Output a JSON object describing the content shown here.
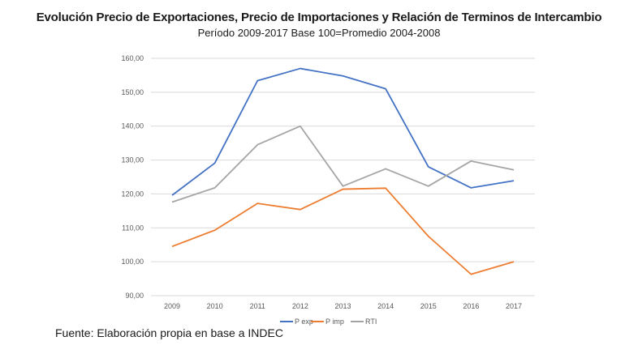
{
  "chart_data": {
    "type": "line",
    "title": "Evolución Precio de Exportaciones, Precio de Importaciones y Relación de Terminos de Intercambio",
    "subtitle": "Período 2009-2017 Base 100=Promedio 2004-2008",
    "xlabel": "",
    "ylabel": "",
    "x": [
      "2009",
      "2010",
      "2011",
      "2012",
      "2013",
      "2014",
      "2015",
      "2016",
      "2017"
    ],
    "ylim": [
      90,
      160
    ],
    "yticks": [
      90,
      100,
      110,
      120,
      130,
      140,
      150,
      160
    ],
    "ytick_labels": [
      "90,00",
      "100,00",
      "110,00",
      "120,00",
      "130,00",
      "140,00",
      "150,00",
      "160,00"
    ],
    "grid": true,
    "legend_position": "bottom-center",
    "series": [
      {
        "name": "P exp",
        "color": "#4472c4",
        "values": [
          119.6,
          129.1,
          153.4,
          157.0,
          154.8,
          151.0,
          128.0,
          121.8,
          123.9
        ]
      },
      {
        "name": "P imp",
        "color": "#ed7d31",
        "values": [
          104.5,
          109.3,
          117.2,
          115.4,
          121.4,
          121.7,
          107.5,
          96.3,
          100.0
        ]
      },
      {
        "name": "RTI",
        "color": "#a5a5a5",
        "values": [
          117.6,
          121.8,
          134.5,
          140.0,
          122.3,
          127.4,
          122.3,
          129.7,
          127.1
        ]
      }
    ]
  },
  "footer": {
    "source": "Fuente: Elaboración propia en base a INDEC"
  }
}
